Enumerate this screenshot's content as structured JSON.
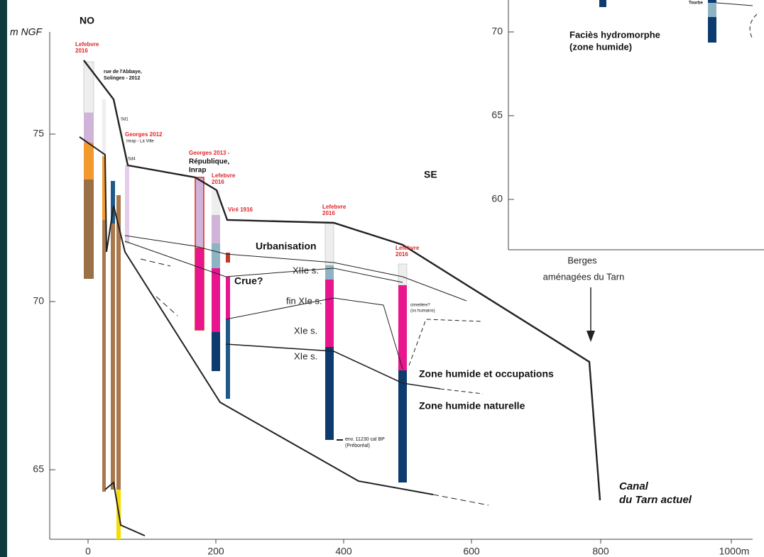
{
  "orientation": {
    "northwest": "NO",
    "southeast": "SE"
  },
  "y_axis": {
    "label": "m NGF",
    "ticks": [
      "75",
      "70",
      "65"
    ]
  },
  "x_axis": {
    "ticks": [
      "0",
      "200",
      "400",
      "600",
      "800",
      "1000m"
    ]
  },
  "inset": {
    "ticks": [
      "70",
      "65",
      "60"
    ],
    "facies": [
      "Faciès hydromorphe",
      "(zone humide)"
    ],
    "peat": "Tourbe"
  },
  "sources": {
    "lefebvre_1": [
      "Lefebvre",
      "2016"
    ],
    "abbaye": [
      "rue de l'Abbaye,",
      "Solingeo - 2012"
    ],
    "sd1": "Sd1",
    "georges_2012": [
      "Georges 2012",
      "Inrap - La Ville"
    ],
    "sd4": "Sd4",
    "georges_2013": [
      "Georges 2013 -",
      "République,",
      "Inrap"
    ],
    "lefebvre_2": [
      "Lefebvre",
      "2016"
    ],
    "vire": "Viré 1916",
    "lefebvre_3": [
      "Lefebvre",
      "2016"
    ],
    "lefebvre_4": [
      "Lefebvre",
      "2016"
    ]
  },
  "annotations": {
    "urbanisation": "Urbanisation",
    "flood": "Crue?",
    "c12": "XIIe s.",
    "late11": "fin XIe s.",
    "c11a": "XIe s.",
    "c11b": "XIe s.",
    "cemetery": [
      "cimetière?",
      "(os humains)"
    ],
    "dating": [
      "env. 11230 cal BP",
      "(Préboréal)"
    ],
    "wet_occupation": "Zone humide et occupations",
    "wet_natural": "Zone humide naturelle",
    "banks": [
      "Berges",
      "aménagées du Tarn"
    ],
    "canal": [
      "Canal",
      "du Tarn actuel"
    ]
  }
}
